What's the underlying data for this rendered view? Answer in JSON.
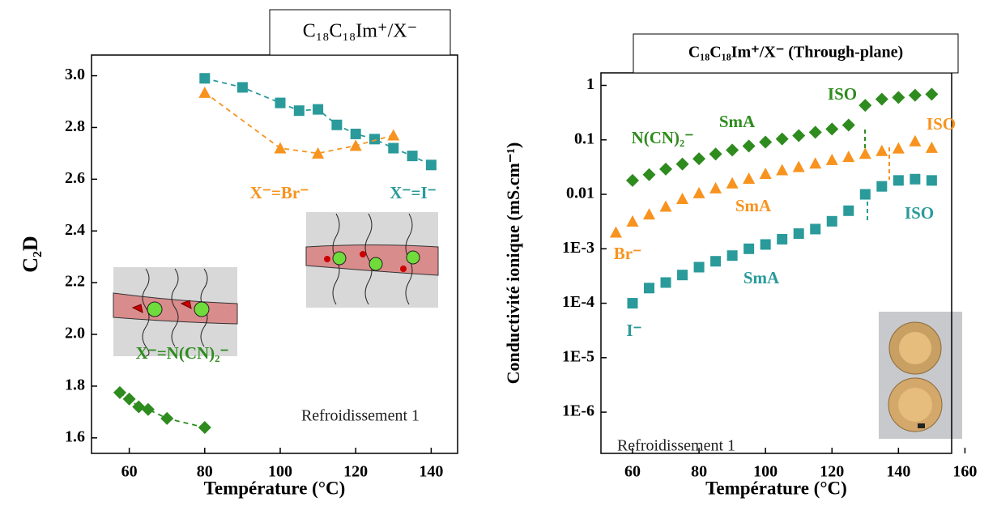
{
  "chart_data": [
    {
      "type": "scatter",
      "title": "C₁₈C₁₈Im⁺/X⁻",
      "x_label": "Température (°C)",
      "y_label": "C₂D",
      "xlim": [
        50,
        147
      ],
      "xticks": [
        60,
        80,
        100,
        120,
        140
      ],
      "ylim": [
        1.54,
        3.08
      ],
      "yticks": [
        {
          "value": 1.6,
          "label": "1.6"
        },
        {
          "value": 1.8,
          "label": "1.8"
        },
        {
          "value": 2.0,
          "label": "2.0"
        },
        {
          "value": 2.2,
          "label": "2.2"
        },
        {
          "value": 2.4,
          "label": "2.4"
        },
        {
          "value": 2.6,
          "label": "2.6"
        },
        {
          "value": 2.8,
          "label": "2.8"
        },
        {
          "value": 3.0,
          "label": "3.0"
        }
      ],
      "log_y": false,
      "dashed_lines": true,
      "series": [
        {
          "color": "#2a9a9a",
          "marker": "square",
          "x": [
            80,
            90,
            100,
            105,
            110,
            115,
            120,
            125,
            130,
            135,
            140
          ],
          "values": [
            2.99,
            2.955,
            2.895,
            2.865,
            2.87,
            2.81,
            2.775,
            2.755,
            2.72,
            2.69,
            2.655
          ]
        },
        {
          "color": "#f7931e",
          "marker": "triangle",
          "x": [
            80,
            100,
            110,
            120,
            130
          ],
          "values": [
            2.935,
            2.72,
            2.7,
            2.73,
            2.77
          ]
        },
        {
          "color": "#2e8b1e",
          "marker": "diamond",
          "x": [
            57.5,
            60,
            62.5,
            65,
            70,
            80
          ],
          "values": [
            1.775,
            1.75,
            1.72,
            1.71,
            1.675,
            1.64
          ]
        }
      ],
      "annotations": [
        {
          "text": "X⁻=Br⁻",
          "color": "#f7931e"
        },
        {
          "text": "X⁻=I⁻",
          "color": "#2a9a9a"
        },
        {
          "text": "X⁻=N(CN)₂⁻",
          "color": "#2e8b1e"
        },
        {
          "text": "Refroidissement 1",
          "color": "#222222"
        }
      ]
    },
    {
      "type": "scatter",
      "title": "C₁₈C₁₈Im⁺/X⁻ (Through-plane)",
      "x_label": "Température (°C)",
      "y_label": "Conductivité ionique (mS.cm⁻¹)",
      "xlim": [
        50.5,
        156
      ],
      "xticks": [
        60,
        80,
        100,
        120,
        140,
        160
      ],
      "ylim": [
        1.75e-07,
        1.7
      ],
      "log_y": true,
      "dashed_lines": false,
      "yticks": [
        {
          "value": 1e-06,
          "label": "1E-6"
        },
        {
          "value": 1e-05,
          "label": "1E-5"
        },
        {
          "value": 0.0001,
          "label": "1E-4"
        },
        {
          "value": 0.001,
          "label": "1E-3"
        },
        0.01,
        0.1,
        1
      ],
      "series": [
        {
          "color": "#2e8b1e",
          "marker": "diamond",
          "x": [
            60,
            65,
            70,
            75,
            80,
            85,
            90,
            95,
            100,
            105,
            110,
            115,
            120,
            125,
            130,
            135,
            140,
            145,
            150
          ],
          "values": [
            0.018,
            0.023,
            0.029,
            0.036,
            0.045,
            0.055,
            0.065,
            0.077,
            0.091,
            0.104,
            0.12,
            0.138,
            0.158,
            0.187,
            0.43,
            0.56,
            0.6,
            0.66,
            0.69
          ]
        },
        {
          "color": "#f7931e",
          "marker": "triangle",
          "x": [
            55,
            60,
            65,
            70,
            75,
            80,
            85,
            90,
            95,
            100,
            105,
            110,
            115,
            120,
            125,
            130,
            135,
            140,
            145,
            150
          ],
          "values": [
            0.002,
            0.0032,
            0.0043,
            0.006,
            0.0083,
            0.0106,
            0.013,
            0.016,
            0.0195,
            0.024,
            0.028,
            0.032,
            0.037,
            0.043,
            0.049,
            0.056,
            0.063,
            0.07,
            0.095,
            0.072
          ]
        },
        {
          "color": "#2a9a9a",
          "marker": "square",
          "x": [
            60,
            65,
            70,
            75,
            80,
            85,
            90,
            95,
            100,
            105,
            110,
            115,
            120,
            125,
            130,
            135,
            140,
            145,
            150
          ],
          "values": [
            0.0001,
            0.00019,
            0.00024,
            0.00033,
            0.00046,
            0.00059,
            0.00075,
            0.001,
            0.0012,
            0.0015,
            0.0019,
            0.0023,
            0.0032,
            0.005,
            0.01,
            0.014,
            0.018,
            0.019,
            0.018
          ]
        }
      ],
      "annotations": [
        {
          "text": "N(CN)₂⁻",
          "color": "#2e8b1e"
        },
        {
          "text": "SmA",
          "color": "#2e8b1e"
        },
        {
          "text": "ISO",
          "color": "#2e8b1e"
        },
        {
          "text": "ISO",
          "color": "#f7931e"
        },
        {
          "text": "SmA",
          "color": "#f7931e"
        },
        {
          "text": "Br⁻",
          "color": "#f7931e"
        },
        {
          "text": "ISO",
          "color": "#2a9a9a"
        },
        {
          "text": "SmA",
          "color": "#2a9a9a"
        },
        {
          "text": "I⁻",
          "color": "#2a9a9a"
        },
        {
          "text": "Refroidissement 1",
          "color": "#222222"
        }
      ]
    }
  ]
}
